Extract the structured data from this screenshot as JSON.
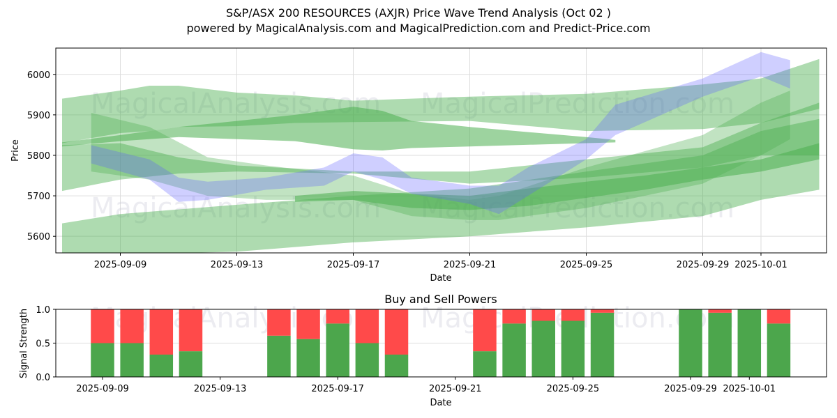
{
  "header": {
    "title": "S&P/ASX 200 RESOURCES (AXJR) Price Wave Trend Analysis (Oct 02 )",
    "subtitle": "powered by MagicalAnalysis.com and MagicalPrediction.com and Predict-Price.com"
  },
  "watermarks": [
    "MagicalAnalysis.com",
    "MagicalPrediction.com"
  ],
  "colors": {
    "band_green": "#4caf50",
    "band_blue": "#6060ff",
    "buy": "#4ca64c",
    "sell": "#ff4a4a",
    "grid": "#dddddd"
  },
  "chart_data": [
    {
      "type": "area",
      "title": "",
      "xlabel": "Date",
      "ylabel": "Price",
      "x_range": [
        "2025-09-06T19:00",
        "2025-10-03T04:00"
      ],
      "ylim": [
        5559,
        6065
      ],
      "yticks": [
        5600,
        5700,
        5800,
        5900,
        6000
      ],
      "xticks": [
        "2025-09-09",
        "2025-09-13",
        "2025-09-17",
        "2025-09-21",
        "2025-09-25",
        "2025-09-29",
        "2025-10-01"
      ],
      "grid": true,
      "legend": "none",
      "series": [
        {
          "name": "upper-wave-wide",
          "color": "green",
          "opacity": 0.45,
          "x": [
            "2025-09-07",
            "2025-09-09",
            "2025-09-10",
            "2025-09-11",
            "2025-09-13",
            "2025-09-15",
            "2025-09-17",
            "2025-09-21",
            "2025-09-25",
            "2025-09-29",
            "2025-10-01",
            "2025-10-03"
          ],
          "upper": [
            5940,
            5960,
            5972,
            5972,
            5955,
            5948,
            5935,
            5945,
            5952,
            5975,
            5990,
            6038
          ],
          "lower": [
            5830,
            5855,
            5860,
            5870,
            5872,
            5880,
            5882,
            5885,
            5860,
            5865,
            5880,
            5915
          ]
        },
        {
          "name": "upper-wave-core",
          "color": "green",
          "opacity": 0.55,
          "x": [
            "2025-09-07",
            "2025-09-09",
            "2025-09-11",
            "2025-09-13",
            "2025-09-15",
            "2025-09-17",
            "2025-09-18",
            "2025-09-19",
            "2025-09-21",
            "2025-09-25",
            "2025-09-26"
          ],
          "upper": [
            5832,
            5850,
            5870,
            5885,
            5900,
            5920,
            5910,
            5885,
            5870,
            5845,
            5838
          ],
          "lower": [
            5822,
            5835,
            5845,
            5840,
            5835,
            5815,
            5812,
            5818,
            5822,
            5830,
            5832
          ]
        },
        {
          "name": "mid-wave-wide",
          "color": "green",
          "opacity": 0.45,
          "x": [
            "2025-09-07",
            "2025-09-09",
            "2025-09-11",
            "2025-09-13",
            "2025-09-17",
            "2025-09-21",
            "2025-09-25",
            "2025-09-29",
            "2025-10-01",
            "2025-10-03"
          ],
          "upper": [
            5825,
            5830,
            5795,
            5775,
            5760,
            5760,
            5790,
            5820,
            5880,
            5930
          ],
          "lower": [
            5712,
            5740,
            5755,
            5760,
            5755,
            5730,
            5745,
            5770,
            5800,
            5800
          ]
        },
        {
          "name": "lower-wave-wide",
          "color": "green",
          "opacity": 0.45,
          "x": [
            "2025-09-07",
            "2025-09-09",
            "2025-09-13",
            "2025-09-17",
            "2025-09-21",
            "2025-09-25",
            "2025-09-29",
            "2025-10-01",
            "2025-10-03"
          ],
          "upper": [
            5632,
            5655,
            5678,
            5700,
            5718,
            5760,
            5800,
            5860,
            5890
          ],
          "lower": [
            5555,
            5555,
            5562,
            5585,
            5600,
            5622,
            5650,
            5690,
            5715
          ]
        },
        {
          "name": "lower-wave-core",
          "color": "green",
          "opacity": 0.55,
          "x": [
            "2025-09-15",
            "2025-09-17",
            "2025-09-19",
            "2025-09-21",
            "2025-09-23",
            "2025-09-25",
            "2025-09-27",
            "2025-09-29",
            "2025-10-01",
            "2025-10-03"
          ],
          "upper": [
            5700,
            5712,
            5705,
            5700,
            5718,
            5735,
            5750,
            5770,
            5790,
            5830
          ],
          "lower": [
            5685,
            5690,
            5670,
            5665,
            5675,
            5695,
            5715,
            5740,
            5760,
            5790
          ]
        },
        {
          "name": "wave-paths-green",
          "color": "green",
          "opacity": 0.35,
          "x": [
            "2025-09-08",
            "2025-09-10",
            "2025-09-12",
            "2025-09-14",
            "2025-09-17",
            "2025-09-19",
            "2025-09-21",
            "2025-09-22",
            "2025-09-25",
            "2025-09-29",
            "2025-10-01",
            "2025-10-02"
          ],
          "upper": [
            5905,
            5870,
            5795,
            5775,
            5750,
            5705,
            5690,
            5700,
            5770,
            5850,
            5930,
            5960
          ],
          "lower": [
            5760,
            5740,
            5700,
            5690,
            5690,
            5650,
            5640,
            5640,
            5670,
            5730,
            5800,
            5840
          ]
        },
        {
          "name": "price-wave-blue",
          "color": "blue",
          "opacity": 0.3,
          "x": [
            "2025-09-08",
            "2025-09-10",
            "2025-09-11",
            "2025-09-12",
            "2025-09-14",
            "2025-09-16",
            "2025-09-17",
            "2025-09-18",
            "2025-09-19",
            "2025-09-21",
            "2025-09-22",
            "2025-09-23",
            "2025-09-25",
            "2025-09-26",
            "2025-09-29",
            "2025-10-01",
            "2025-10-02"
          ],
          "upper": [
            5825,
            5790,
            5745,
            5735,
            5745,
            5770,
            5805,
            5795,
            5745,
            5725,
            5725,
            5770,
            5840,
            5925,
            5990,
            6055,
            6035
          ],
          "lower": [
            5780,
            5740,
            5685,
            5690,
            5715,
            5725,
            5760,
            5740,
            5705,
            5680,
            5655,
            5700,
            5790,
            5850,
            5945,
            5995,
            5965
          ]
        }
      ]
    },
    {
      "type": "bar",
      "title": "Buy and Sell Powers",
      "xlabel": "Date",
      "ylabel": "Signal Strength",
      "ylim": [
        0,
        1.0
      ],
      "yticks": [
        "0.0",
        "0.5",
        "1.0"
      ],
      "xticks": [
        "2025-09-09",
        "2025-09-13",
        "2025-09-17",
        "2025-09-21",
        "2025-09-25",
        "2025-09-29",
        "2025-10-01"
      ],
      "grid": true,
      "stacked": true,
      "categories": [
        "2025-09-09",
        "2025-09-10",
        "2025-09-11",
        "2025-09-12",
        "2025-09-15",
        "2025-09-16",
        "2025-09-17",
        "2025-09-18",
        "2025-09-19",
        "2025-09-22",
        "2025-09-23",
        "2025-09-24",
        "2025-09-25",
        "2025-09-26",
        "2025-09-29",
        "2025-09-30",
        "2025-10-01",
        "2025-10-02"
      ],
      "series": [
        {
          "name": "Buy",
          "values": [
            0.5,
            0.5,
            0.33,
            0.38,
            0.61,
            0.56,
            0.79,
            0.5,
            0.33,
            0.38,
            0.79,
            0.83,
            0.83,
            0.95,
            1.0,
            0.95,
            1.0,
            0.79
          ]
        },
        {
          "name": "Sell",
          "values": [
            0.5,
            0.5,
            0.67,
            0.62,
            0.39,
            0.44,
            0.21,
            0.5,
            0.67,
            0.62,
            0.21,
            0.17,
            0.17,
            0.05,
            0.0,
            0.05,
            0.0,
            0.21
          ]
        }
      ]
    }
  ]
}
